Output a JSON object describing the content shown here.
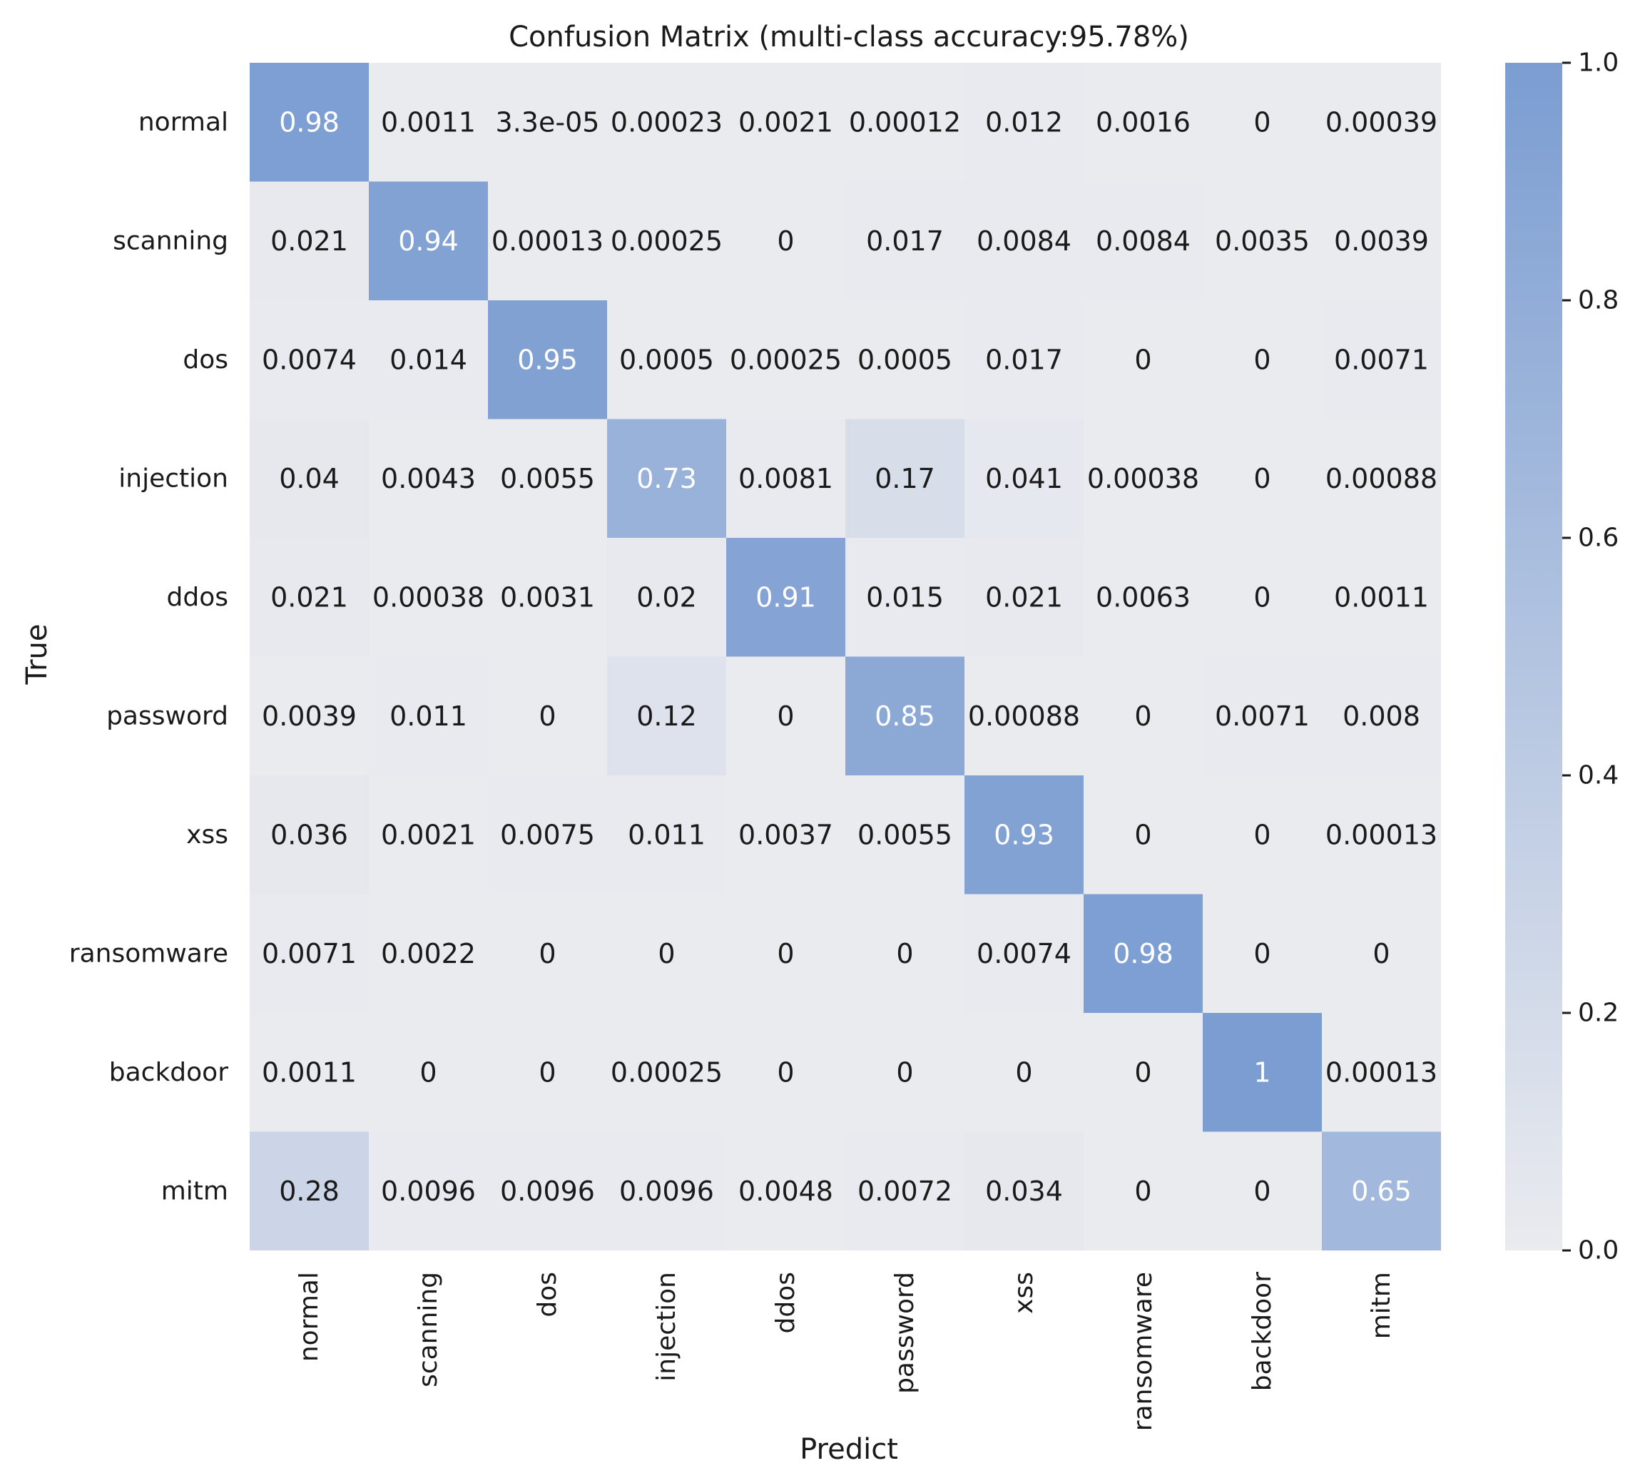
{
  "chart_data": {
    "type": "heatmap",
    "title": "Confusion Matrix (multi-class accuracy:95.78%)",
    "xlabel": "Predict",
    "ylabel": "True",
    "x_categories": [
      "normal",
      "scanning",
      "dos",
      "injection",
      "ddos",
      "password",
      "xss",
      "ransomware",
      "backdoor",
      "mitm"
    ],
    "y_categories": [
      "normal",
      "scanning",
      "dos",
      "injection",
      "ddos",
      "password",
      "xss",
      "ransomware",
      "backdoor",
      "mitm"
    ],
    "values": [
      [
        0.98,
        0.0011,
        3.3e-05,
        0.00023,
        0.0021,
        0.00012,
        0.012,
        0.0016,
        0,
        0.00039
      ],
      [
        0.021,
        0.94,
        0.00013,
        0.00025,
        0,
        0.017,
        0.0084,
        0.0084,
        0.0035,
        0.0039
      ],
      [
        0.0074,
        0.014,
        0.95,
        0.0005,
        0.00025,
        0.0005,
        0.017,
        0,
        0,
        0.0071
      ],
      [
        0.04,
        0.0043,
        0.0055,
        0.73,
        0.0081,
        0.17,
        0.041,
        0.00038,
        0,
        0.00088
      ],
      [
        0.021,
        0.00038,
        0.0031,
        0.02,
        0.91,
        0.015,
        0.021,
        0.0063,
        0,
        0.0011
      ],
      [
        0.0039,
        0.011,
        0,
        0.12,
        0,
        0.85,
        0.00088,
        0,
        0.0071,
        0.008
      ],
      [
        0.036,
        0.0021,
        0.0075,
        0.011,
        0.0037,
        0.0055,
        0.93,
        0,
        0,
        0.00013
      ],
      [
        0.0071,
        0.0022,
        0,
        0,
        0,
        0,
        0.0074,
        0.98,
        0,
        0
      ],
      [
        0.0011,
        0,
        0,
        0.00025,
        0,
        0,
        0,
        0,
        1,
        0.00013
      ],
      [
        0.28,
        0.0096,
        0.0096,
        0.0096,
        0.0048,
        0.0072,
        0.034,
        0,
        0,
        0.65
      ]
    ],
    "annotations": [
      [
        "0.98",
        "0.0011",
        "3.3e-05",
        "0.00023",
        "0.0021",
        "0.00012",
        "0.012",
        "0.0016",
        "0",
        "0.00039"
      ],
      [
        "0.021",
        "0.94",
        "0.00013",
        "0.00025",
        "0",
        "0.017",
        "0.0084",
        "0.0084",
        "0.0035",
        "0.0039"
      ],
      [
        "0.0074",
        "0.014",
        "0.95",
        "0.0005",
        "0.00025",
        "0.0005",
        "0.017",
        "0",
        "0",
        "0.0071"
      ],
      [
        "0.04",
        "0.0043",
        "0.0055",
        "0.73",
        "0.0081",
        "0.17",
        "0.041",
        "0.00038",
        "0",
        "0.00088"
      ],
      [
        "0.021",
        "0.00038",
        "0.0031",
        "0.02",
        "0.91",
        "0.015",
        "0.021",
        "0.0063",
        "0",
        "0.0011"
      ],
      [
        "0.0039",
        "0.011",
        "0",
        "0.12",
        "0",
        "0.85",
        "0.00088",
        "0",
        "0.0071",
        "0.008"
      ],
      [
        "0.036",
        "0.0021",
        "0.0075",
        "0.011",
        "0.0037",
        "0.0055",
        "0.93",
        "0",
        "0",
        "0.00013"
      ],
      [
        "0.0071",
        "0.0022",
        "0",
        "0",
        "0",
        "0",
        "0.0074",
        "0.98",
        "0",
        "0"
      ],
      [
        "0.0011",
        "0",
        "0",
        "0.00025",
        "0",
        "0",
        "0",
        "0",
        "1",
        "0.00013"
      ],
      [
        "0.28",
        "0.0096",
        "0.0096",
        "0.0096",
        "0.0048",
        "0.0072",
        "0.034",
        "0",
        "0",
        "0.65"
      ]
    ],
    "vmin": 0,
    "vmax": 1,
    "colorbar_ticks": [
      0.0,
      0.2,
      0.4,
      0.6,
      0.8,
      1.0
    ],
    "colorbar_tick_labels": [
      "0.0",
      "0.2",
      "0.4",
      "0.6",
      "0.8",
      "1.0"
    ],
    "colormap": {
      "low": "#eaebef",
      "high": "#7b9dd2"
    },
    "annotation_colors": {
      "dark": "#1a1a1a",
      "light": "#ffffff"
    }
  }
}
